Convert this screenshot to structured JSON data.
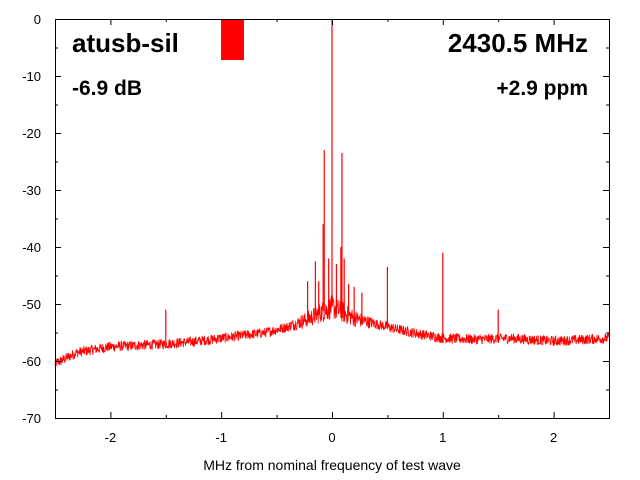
{
  "chart_data": {
    "type": "line",
    "title": "",
    "xlabel": "MHz from nominal frequency of test wave",
    "ylabel": "",
    "xlim": [
      -2.5,
      2.5
    ],
    "ylim": [
      -70,
      0
    ],
    "x_ticks": [
      -2,
      -1,
      0,
      1,
      2
    ],
    "x_tick_labels": [
      "-2",
      "-1",
      "0",
      "1",
      "2"
    ],
    "y_ticks": [
      0,
      -10,
      -20,
      -30,
      -40,
      -50,
      -60,
      -70
    ],
    "y_tick_labels": [
      "0",
      "-10",
      "-20",
      "-30",
      "-40",
      "-50",
      "-60",
      "-70"
    ],
    "grid": false,
    "series_color": "#ff0000",
    "annotations": {
      "device": "atusb-sil",
      "frequency": "2430.5 MHz",
      "level": "-6.9 dB",
      "offset": "+2.9 ppm"
    },
    "level_indicator": {
      "value_db": -6.9,
      "color": "#ff0000"
    },
    "baseline": {
      "x": [
        -2.5,
        -2.3,
        -2.0,
        -1.7,
        -1.5,
        -1.2,
        -1.0,
        -0.8,
        -0.6,
        -0.4,
        -0.2,
        -0.1,
        0.0,
        0.1,
        0.2,
        0.4,
        0.6,
        0.8,
        1.0,
        1.3,
        1.6,
        2.0,
        2.5
      ],
      "y": [
        -60.5,
        -58.5,
        -57.5,
        -57.2,
        -57.0,
        -56.5,
        -56.0,
        -55.5,
        -55.0,
        -54.0,
        -52.5,
        -51.5,
        -50.5,
        -51.5,
        -52.5,
        -53.5,
        -54.5,
        -55.3,
        -56.0,
        -56.2,
        -56.0,
        -56.5,
        -56.0
      ]
    },
    "spikes": [
      {
        "x": 0.0,
        "y": 0
      },
      {
        "x": -0.07,
        "y": -23
      },
      {
        "x": 0.09,
        "y": -23.5
      },
      {
        "x": -0.08,
        "y": -36
      },
      {
        "x": 0.08,
        "y": -40
      },
      {
        "x": 0.11,
        "y": -42
      },
      {
        "x": -0.15,
        "y": -42.5
      },
      {
        "x": -0.03,
        "y": -42
      },
      {
        "x": 0.04,
        "y": -43
      },
      {
        "x": -0.22,
        "y": -46
      },
      {
        "x": 0.2,
        "y": -47
      },
      {
        "x": 0.5,
        "y": -43.5
      },
      {
        "x": 1.0,
        "y": -41
      },
      {
        "x": -1.5,
        "y": -51
      },
      {
        "x": 1.5,
        "y": -51
      },
      {
        "x": 0.27,
        "y": -48
      },
      {
        "x": -0.12,
        "y": -46
      },
      {
        "x": 0.15,
        "y": -46.5
      }
    ]
  }
}
